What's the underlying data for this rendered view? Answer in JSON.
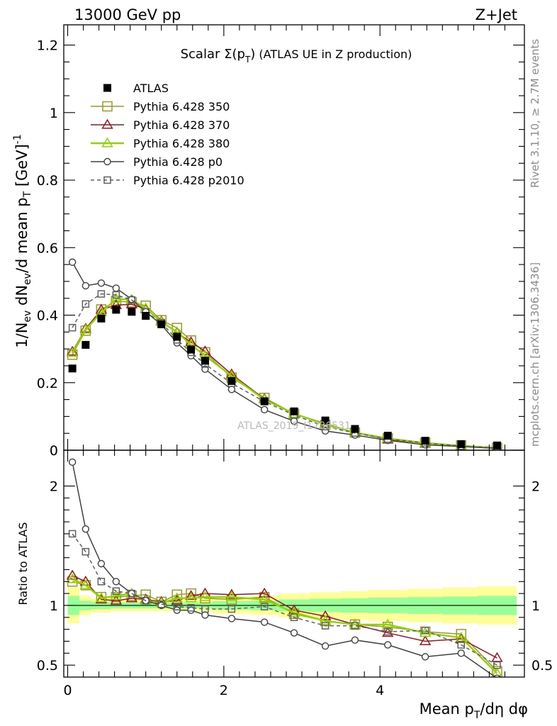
{
  "header": {
    "energy_label": "13000 GeV pp",
    "process_label": "Z+Jet",
    "plot_title": "Scalar Σ(p_T) (ATLAS UE in Z production)",
    "side_label_1": "Rivet 3.1.10, ≥ 2.7M events",
    "side_label_2": "mcplots.cern.ch [arXiv:1306.3436]",
    "watermark": "ATLAS_2019_I1736531"
  },
  "axes": {
    "main_ylabel": "1/N_ev dN_ev/d mean p_T [GeV]^-1",
    "ratio_ylabel": "Ratio to ATLAS",
    "xlabel": "Mean p_T/dη dφ"
  },
  "chart_data": [
    {
      "type": "line",
      "panel": "main",
      "xlim": [
        -0.05,
        5.85
      ],
      "ylim": [
        0,
        1.26
      ],
      "yticks": [
        "0",
        "0.2",
        "0.4",
        "0.6",
        "0.8",
        "1",
        "1.2"
      ],
      "ytick_values": [
        0,
        0.2,
        0.4,
        0.6,
        0.8,
        1.0,
        1.2
      ],
      "grid": false,
      "legend_position": "top-left",
      "x": [
        0.06,
        0.23,
        0.43,
        0.62,
        0.82,
        1.0,
        1.2,
        1.4,
        1.58,
        1.76,
        2.1,
        2.52,
        2.9,
        3.3,
        3.68,
        4.1,
        4.58,
        5.04,
        5.5
      ],
      "series": [
        {
          "name": "ATLAS",
          "style": "data",
          "color": "#000000",
          "values": [
            0.242,
            0.312,
            0.39,
            0.416,
            0.41,
            0.398,
            0.373,
            0.336,
            0.298,
            0.265,
            0.205,
            0.145,
            0.115,
            0.088,
            0.063,
            0.043,
            0.028,
            0.018,
            0.014
          ]
        },
        {
          "name": "Pythia 6.428 350",
          "style": "square-open",
          "color": "#9a9a24",
          "values": [
            0.283,
            0.354,
            0.417,
            0.442,
            0.438,
            0.428,
            0.385,
            0.362,
            0.325,
            0.29,
            0.215,
            0.155,
            0.108,
            0.075,
            0.052,
            0.035,
            0.022,
            0.014,
            0.007
          ]
        },
        {
          "name": "Pythia 6.428 370",
          "style": "triangle-open",
          "color": "#9b1522",
          "values": [
            0.292,
            0.36,
            0.416,
            0.43,
            0.432,
            0.418,
            0.382,
            0.348,
            0.32,
            0.293,
            0.225,
            0.152,
            0.108,
            0.079,
            0.052,
            0.032,
            0.02,
            0.013,
            0.008
          ]
        },
        {
          "name": "Pythia 6.428 380",
          "style": "triangle-open",
          "color": "#8fd400",
          "values": [
            0.288,
            0.357,
            0.408,
            0.448,
            0.446,
            0.42,
            0.38,
            0.35,
            0.312,
            0.28,
            0.22,
            0.15,
            0.108,
            0.077,
            0.052,
            0.035,
            0.021,
            0.013,
            0.007
          ]
        },
        {
          "name": "Pythia 6.428 p0",
          "style": "circle-open",
          "color": "#404040",
          "values": [
            0.557,
            0.487,
            0.495,
            0.48,
            0.447,
            0.41,
            0.372,
            0.318,
            0.28,
            0.24,
            0.18,
            0.12,
            0.086,
            0.057,
            0.045,
            0.029,
            0.016,
            0.011,
            0.005
          ]
        },
        {
          "name": "Pythia 6.428 p2010",
          "style": "square-open-dashed",
          "color": "#606060",
          "values": [
            0.363,
            0.433,
            0.463,
            0.46,
            0.445,
            0.41,
            0.378,
            0.327,
            0.29,
            0.255,
            0.198,
            0.144,
            0.104,
            0.07,
            0.051,
            0.033,
            0.022,
            0.012,
            0.007
          ]
        }
      ]
    },
    {
      "type": "line",
      "panel": "ratio",
      "xlim": [
        -0.05,
        5.85
      ],
      "ylim": [
        0.4,
        2.3
      ],
      "yticks": [
        "0.5",
        "1",
        "2"
      ],
      "ytick_values": [
        0.5,
        1,
        2
      ],
      "xticks": [
        "0",
        "2",
        "4"
      ],
      "xtick_values": [
        0,
        2,
        4
      ],
      "x_edges": [
        0,
        0.15,
        0.3,
        0.55,
        0.7,
        0.9,
        1.1,
        1.3,
        1.5,
        1.65,
        1.85,
        2.35,
        2.7,
        3.1,
        3.5,
        3.85,
        4.35,
        4.8,
        5.25,
        5.75
      ],
      "band_yellow_low": [
        0.85,
        0.92,
        0.94,
        0.95,
        0.95,
        0.95,
        0.95,
        0.95,
        0.95,
        0.95,
        0.93,
        0.92,
        0.9,
        0.89,
        0.88,
        0.87,
        0.86,
        0.85,
        0.84
      ],
      "band_yellow_high": [
        1.15,
        1.08,
        1.06,
        1.05,
        1.05,
        1.05,
        1.05,
        1.05,
        1.05,
        1.05,
        1.07,
        1.08,
        1.1,
        1.11,
        1.12,
        1.13,
        1.14,
        1.15,
        1.16
      ],
      "band_green_low": [
        0.92,
        0.96,
        0.97,
        0.975,
        0.975,
        0.975,
        0.975,
        0.975,
        0.975,
        0.975,
        0.965,
        0.96,
        0.95,
        0.945,
        0.94,
        0.935,
        0.93,
        0.925,
        0.92
      ],
      "band_green_high": [
        1.08,
        1.04,
        1.03,
        1.025,
        1.025,
        1.025,
        1.025,
        1.025,
        1.025,
        1.025,
        1.035,
        1.04,
        1.05,
        1.055,
        1.06,
        1.065,
        1.07,
        1.075,
        1.08
      ],
      "x": [
        0.06,
        0.23,
        0.43,
        0.62,
        0.82,
        1.0,
        1.2,
        1.4,
        1.58,
        1.76,
        2.1,
        2.52,
        2.9,
        3.3,
        3.68,
        4.1,
        4.58,
        5.04,
        5.5
      ],
      "series": [
        {
          "name": "Pythia 6.428 350",
          "style": "square-open",
          "color": "#9a9a24",
          "values": [
            1.2,
            1.17,
            1.07,
            1.07,
            1.08,
            1.09,
            1.03,
            1.09,
            1.1,
            1.06,
            1.05,
            1.07,
            0.93,
            0.87,
            0.84,
            0.82,
            0.78,
            0.76,
            0.45
          ]
        },
        {
          "name": "Pythia 6.428 370",
          "style": "triangle-open",
          "color": "#9b1522",
          "values": [
            1.25,
            1.2,
            1.05,
            1.04,
            1.06,
            1.05,
            1.03,
            1.04,
            1.08,
            1.1,
            1.09,
            1.1,
            0.96,
            0.91,
            0.84,
            0.77,
            0.7,
            0.72,
            0.56
          ]
        },
        {
          "name": "Pythia 6.428 380",
          "style": "triangle-open",
          "color": "#8fd400",
          "values": [
            1.22,
            1.17,
            1.06,
            1.08,
            1.1,
            1.04,
            1.02,
            1.06,
            1.06,
            1.07,
            1.07,
            1.05,
            0.94,
            0.87,
            0.84,
            0.84,
            0.77,
            0.73,
            0.43
          ]
        },
        {
          "name": "Pythia 6.428 p0",
          "style": "circle-open",
          "color": "#404040",
          "values": [
            2.2,
            1.64,
            1.35,
            1.2,
            1.1,
            1.04,
            1.0,
            0.96,
            0.96,
            0.92,
            0.89,
            0.86,
            0.77,
            0.66,
            0.71,
            0.67,
            0.57,
            0.6,
            0.39
          ]
        },
        {
          "name": "Pythia 6.428 p2010",
          "style": "square-open-dashed",
          "color": "#606060",
          "values": [
            1.6,
            1.45,
            1.2,
            1.12,
            1.1,
            1.04,
            1.01,
            0.99,
            0.98,
            0.97,
            0.97,
            0.99,
            0.9,
            0.83,
            0.83,
            0.78,
            0.79,
            0.67,
            0.5
          ]
        }
      ]
    }
  ]
}
